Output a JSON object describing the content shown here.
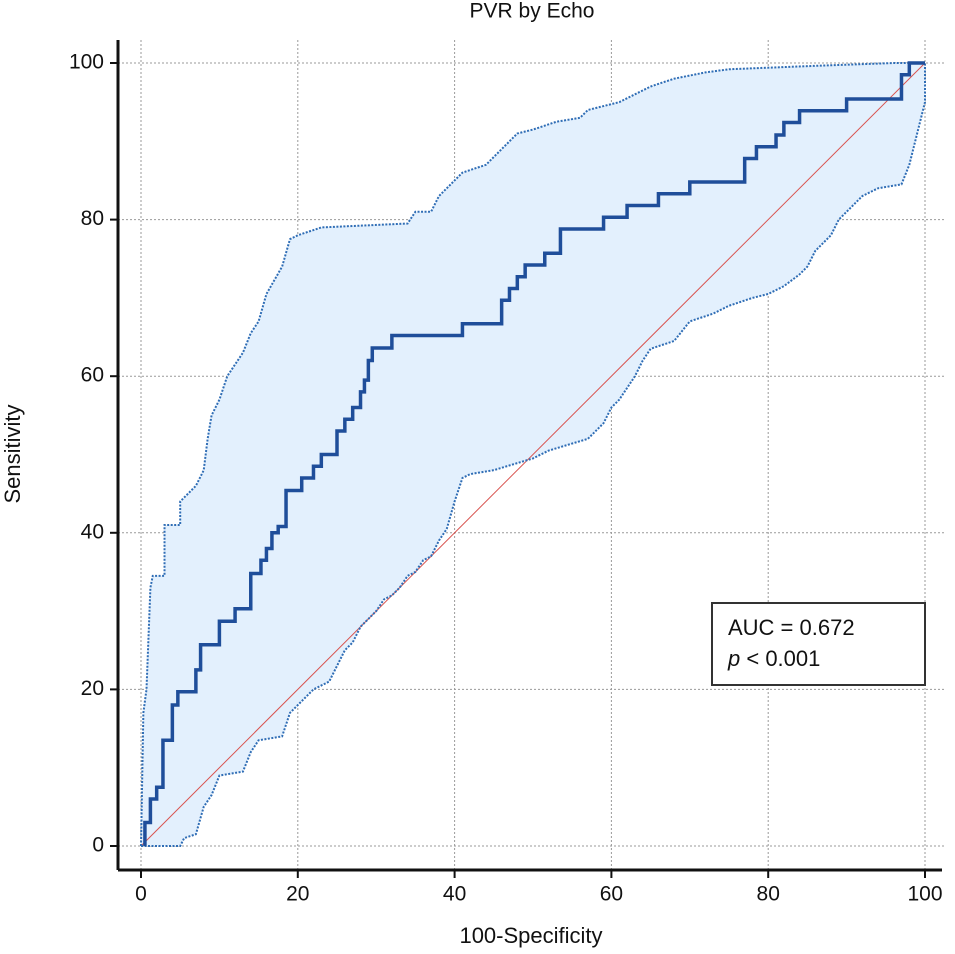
{
  "chart_data": {
    "type": "line",
    "title": "PVR by Echo",
    "x_label": "100-Specificity",
    "y_label": "Sensitivity",
    "xlim": [
      0,
      100
    ],
    "ylim": [
      0,
      100
    ],
    "xticks": [
      0,
      20,
      40,
      60,
      80,
      100
    ],
    "yticks": [
      0,
      20,
      40,
      60,
      80,
      100
    ],
    "grid": true,
    "band_fill": "#e3f0fd",
    "annotation": {
      "line1": "AUC = 0.672",
      "line2_italic": "p",
      "line2_rest": " < 0.001"
    },
    "series": [
      {
        "color": "#d9534f",
        "style": "reference",
        "x": [
          0,
          100
        ],
        "values": [
          0,
          100
        ]
      },
      {
        "color": "#2f6db5",
        "style": "dotted",
        "role": "upper",
        "x": [
          0,
          0.3,
          0.7,
          1.2,
          1.5,
          3,
          3,
          5,
          5,
          6,
          7,
          8,
          8.5,
          9,
          10,
          11,
          12,
          13,
          14,
          15,
          16,
          18,
          19,
          20,
          23,
          34,
          35,
          37,
          38,
          40,
          41,
          44,
          45,
          46,
          48,
          50,
          53,
          56,
          57,
          61,
          63,
          65,
          68,
          72,
          75,
          85,
          96,
          100
        ],
        "values": [
          0,
          17,
          20,
          33,
          34.5,
          34.5,
          41,
          41,
          44,
          45,
          46,
          48,
          52,
          55,
          57,
          60,
          61.5,
          63,
          65.5,
          67,
          70.5,
          74,
          77.5,
          78,
          79,
          79.5,
          81,
          81,
          83,
          85,
          86,
          87,
          88,
          89,
          91,
          91.5,
          92.5,
          93,
          94,
          95,
          96,
          97,
          98,
          98.8,
          99.2,
          99.6,
          100,
          100
        ]
      },
      {
        "color": "#2f6db5",
        "style": "dotted",
        "role": "lower",
        "x": [
          0,
          5,
          5.5,
          7,
          8,
          9,
          10,
          13,
          14,
          15,
          18,
          19,
          21,
          22,
          24,
          25,
          26,
          27,
          28,
          29,
          30,
          31,
          32,
          33,
          34,
          35,
          36,
          37,
          38,
          39,
          40,
          41,
          42,
          45,
          50,
          52,
          57,
          59,
          60,
          61,
          62,
          63,
          64,
          65,
          68,
          70,
          73,
          75,
          78,
          80,
          82,
          84,
          85,
          86,
          88,
          89,
          90,
          91,
          92,
          94,
          97,
          98,
          99,
          100,
          100
        ],
        "values": [
          0,
          0,
          1,
          1.5,
          5,
          6.5,
          9,
          9.5,
          12,
          13.5,
          14,
          17,
          19,
          20,
          21,
          23,
          25,
          26,
          28,
          29,
          30,
          31.5,
          32,
          33,
          34.5,
          35,
          36.5,
          37,
          39,
          40.5,
          44,
          47,
          47.5,
          48,
          49.5,
          50.5,
          52,
          54,
          56,
          57,
          58.5,
          60,
          62,
          63.5,
          64.5,
          67,
          68,
          69,
          70,
          70.5,
          71.5,
          73,
          74,
          76,
          78,
          80,
          81,
          82,
          83,
          84,
          84.5,
          87,
          91,
          95,
          100
        ]
      },
      {
        "color": "#1f4e9a",
        "style": "solid",
        "role": "roc",
        "x": [
          0.5,
          0.5,
          1.2,
          1.2,
          2,
          2,
          2.8,
          2.8,
          4,
          4,
          4.7,
          4.7,
          7,
          7,
          7.6,
          7.6,
          10,
          10,
          12,
          12,
          14,
          14,
          15.3,
          15.3,
          16,
          16,
          16.7,
          16.7,
          17.5,
          17.5,
          18.5,
          18.5,
          20.5,
          20.5,
          22,
          22,
          23,
          23,
          25,
          25,
          26,
          26,
          27,
          27,
          28,
          28,
          28.5,
          28.5,
          29,
          29,
          29.5,
          29.5,
          32,
          32,
          41,
          41,
          46,
          46,
          47,
          47,
          48,
          48,
          49,
          49,
          51.5,
          51.5,
          53.5,
          53.5,
          59,
          59,
          62,
          62,
          66,
          66,
          70,
          70,
          77,
          77,
          78.5,
          78.5,
          81,
          81,
          82,
          82,
          84,
          84,
          90,
          90,
          97,
          97,
          98,
          98,
          100
        ],
        "values": [
          0,
          3,
          3,
          6,
          6,
          7.5,
          7.5,
          13.5,
          13.5,
          18,
          18,
          19.7,
          19.7,
          22.5,
          22.5,
          25.7,
          25.7,
          28.7,
          28.7,
          30.3,
          30.3,
          34.8,
          34.8,
          36.5,
          36.5,
          38,
          38,
          40,
          40,
          40.8,
          40.8,
          45.4,
          45.4,
          47,
          47,
          48.5,
          48.5,
          50,
          50,
          53,
          53,
          54.5,
          54.5,
          56,
          56,
          58,
          58,
          59.5,
          59.5,
          62,
          62,
          63.6,
          63.6,
          65.2,
          65.2,
          66.7,
          66.7,
          69.7,
          69.7,
          71.2,
          71.2,
          72.7,
          72.7,
          74.2,
          74.2,
          75.7,
          75.7,
          78.8,
          78.8,
          80.3,
          80.3,
          81.8,
          81.8,
          83.3,
          83.3,
          84.8,
          84.8,
          87.8,
          87.8,
          89.3,
          89.3,
          90.8,
          90.8,
          92.4,
          92.4,
          93.9,
          93.9,
          95.4,
          95.4,
          98.5,
          98.5,
          100,
          100
        ]
      }
    ]
  }
}
